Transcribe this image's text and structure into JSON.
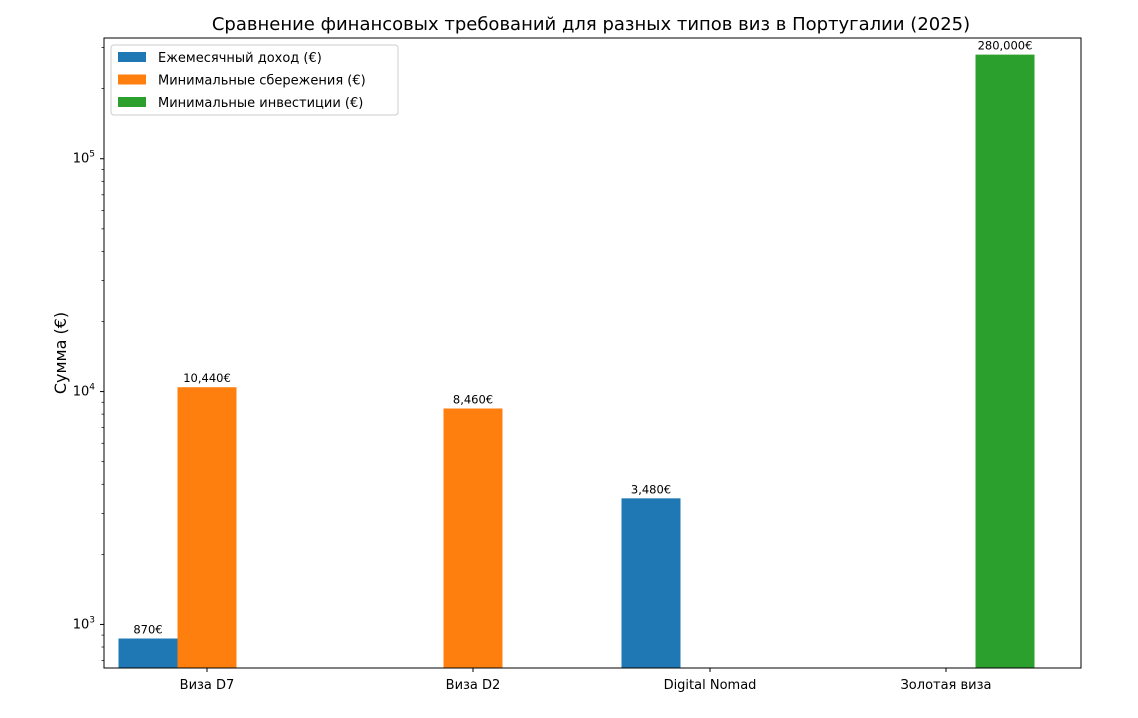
{
  "chart_data": {
    "type": "bar",
    "title": "Сравнение финансовых требований для разных типов виз в Португалии (2025)",
    "xlabel": "",
    "ylabel": "Сумма (€)",
    "yscale": "log",
    "ylim": [
      650,
      330000
    ],
    "grid": false,
    "legend_position": "top-left",
    "categories": [
      "Виза D7",
      "Виза D2",
      "Digital Nomad",
      "Золотая виза"
    ],
    "series": [
      {
        "name": "Ежемесячный доход (€)",
        "color": "#1f77b4",
        "values": [
          870,
          null,
          3480,
          null
        ],
        "labels": [
          "870€",
          "",
          "3,480€",
          ""
        ]
      },
      {
        "name": "Минимальные сбережения (€)",
        "color": "#ff7f0e",
        "values": [
          10440,
          8460,
          null,
          null
        ],
        "labels": [
          "10,440€",
          "8,460€",
          "",
          ""
        ]
      },
      {
        "name": "Минимальные инвестиции (€)",
        "color": "#2ca02c",
        "values": [
          null,
          null,
          null,
          280000
        ],
        "labels": [
          "",
          "",
          "",
          "280,000€"
        ]
      }
    ],
    "y_ticks": [
      {
        "value": 1000,
        "base": "10",
        "exp": "3"
      },
      {
        "value": 10000,
        "base": "10",
        "exp": "4"
      },
      {
        "value": 100000,
        "base": "10",
        "exp": "5"
      }
    ]
  }
}
